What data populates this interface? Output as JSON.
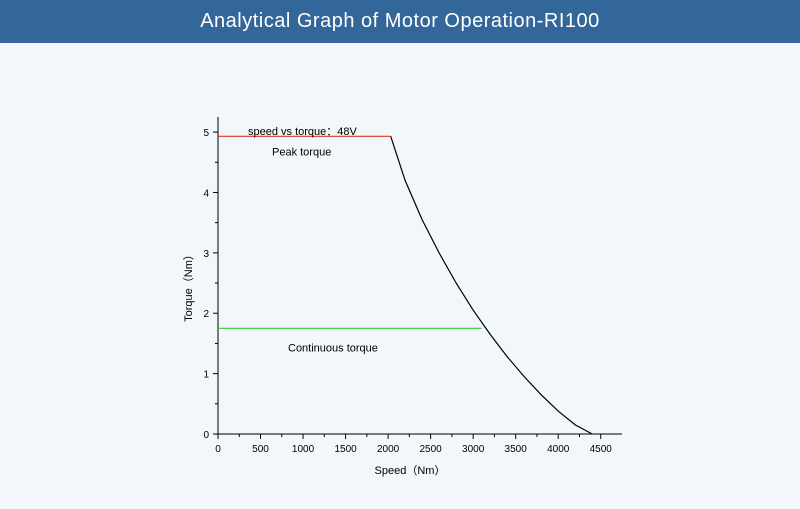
{
  "header": {
    "title": "Analytical Graph of Motor Operation-RI100"
  },
  "colors": {
    "header_bg": "#336699",
    "peak_line": "#e8322a",
    "continuous_line": "#33cc33",
    "curve": "#000000",
    "background": "#f2f7fb"
  },
  "chart_data": {
    "type": "line",
    "title": "speed vs torque：48V",
    "xlabel": "Speed（Nm）",
    "ylabel": "Torque（Nm）",
    "xlim": [
      0,
      4750
    ],
    "ylim": [
      0,
      5.25
    ],
    "xticks": [
      0,
      500,
      1000,
      1500,
      2000,
      2500,
      3000,
      3500,
      4000,
      4500
    ],
    "yticks": [
      0,
      1,
      2,
      3,
      4,
      5
    ],
    "grid": false,
    "series": [
      {
        "name": "Peak torque",
        "x": [
          0,
          2030
        ],
        "y": [
          4.93,
          4.93
        ]
      },
      {
        "name": "Continuous torque",
        "x": [
          0,
          3100
        ],
        "y": [
          1.75,
          1.75
        ]
      },
      {
        "name": "",
        "x": [
          2030,
          2200,
          2400,
          2600,
          2800,
          3000,
          3200,
          3400,
          3600,
          3800,
          4000,
          4200,
          4400
        ],
        "y": [
          4.93,
          4.2,
          3.55,
          3.0,
          2.5,
          2.05,
          1.65,
          1.28,
          0.95,
          0.65,
          0.38,
          0.15,
          0.0
        ]
      }
    ],
    "annotations": {
      "peak_label": "Peak torque",
      "continuous_label": "Continuous torque"
    }
  }
}
